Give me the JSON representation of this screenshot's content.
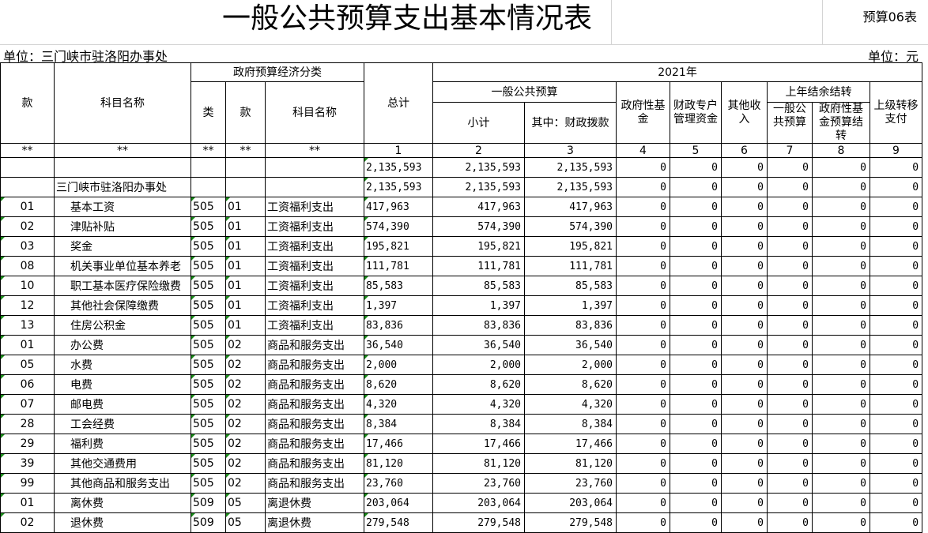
{
  "header": {
    "title": "一般公共预算支出基本情况表",
    "form_code": "预算06表",
    "unit_left": "单位：三门峡市驻洛阳办事处",
    "unit_right": "单位：元"
  },
  "columns": {
    "kuan": "款",
    "subject_name": "科目名称",
    "econ_group": "政府预算经济分类",
    "econ_lei": "类",
    "econ_kuan": "款",
    "econ_name": "科目名称",
    "total": "总计",
    "year": "2021年",
    "general_budget": "一般公共预算",
    "subtotal": "小计",
    "of_which_fiscal": "其中：财政拨款",
    "gov_fund": "政府性基金",
    "special_account": "财政专户管理资金",
    "other_income": "其他收入",
    "carryover": "上年结余结转",
    "carry_general": "一般公共预算",
    "carry_gov_fund": "政府性基金预算结转",
    "transfer": "上级转移支付",
    "idx": [
      "**",
      "**",
      "**",
      "**",
      "**",
      "1",
      "2",
      "3",
      "4",
      "5",
      "6",
      "7",
      "8",
      "9"
    ]
  },
  "rows": [
    {
      "kuan": "",
      "name": "",
      "lei": "",
      "ekuan": "",
      "ename": "",
      "total": "2,135,593",
      "sub": "2,135,593",
      "fiscal": "2,135,593",
      "c4": "0",
      "c5": "0",
      "c6": "0",
      "c7": "0",
      "c8": "0",
      "c9": "0"
    },
    {
      "kuan": "",
      "name": "三门峡市驻洛阳办事处",
      "lei": "",
      "ekuan": "",
      "ename": "",
      "total": "2,135,593",
      "sub": "2,135,593",
      "fiscal": "2,135,593",
      "c4": "0",
      "c5": "0",
      "c6": "0",
      "c7": "0",
      "c8": "0",
      "c9": "0"
    },
    {
      "kuan": "01",
      "name": "基本工资",
      "lei": "505",
      "ekuan": "01",
      "ename": "工资福利支出",
      "total": "417,963",
      "sub": "417,963",
      "fiscal": "417,963",
      "c4": "0",
      "c5": "0",
      "c6": "0",
      "c7": "0",
      "c8": "0",
      "c9": "0"
    },
    {
      "kuan": "02",
      "name": "津贴补贴",
      "lei": "505",
      "ekuan": "01",
      "ename": "工资福利支出",
      "total": "574,390",
      "sub": "574,390",
      "fiscal": "574,390",
      "c4": "0",
      "c5": "0",
      "c6": "0",
      "c7": "0",
      "c8": "0",
      "c9": "0"
    },
    {
      "kuan": "03",
      "name": "奖金",
      "lei": "505",
      "ekuan": "01",
      "ename": "工资福利支出",
      "total": "195,821",
      "sub": "195,821",
      "fiscal": "195,821",
      "c4": "0",
      "c5": "0",
      "c6": "0",
      "c7": "0",
      "c8": "0",
      "c9": "0"
    },
    {
      "kuan": "08",
      "name": "机关事业单位基本养老",
      "lei": "505",
      "ekuan": "01",
      "ename": "工资福利支出",
      "total": "111,781",
      "sub": "111,781",
      "fiscal": "111,781",
      "c4": "0",
      "c5": "0",
      "c6": "0",
      "c7": "0",
      "c8": "0",
      "c9": "0"
    },
    {
      "kuan": "10",
      "name": "职工基本医疗保险缴费",
      "lei": "505",
      "ekuan": "01",
      "ename": "工资福利支出",
      "total": "85,583",
      "sub": "85,583",
      "fiscal": "85,583",
      "c4": "0",
      "c5": "0",
      "c6": "0",
      "c7": "0",
      "c8": "0",
      "c9": "0"
    },
    {
      "kuan": "12",
      "name": "其他社会保障缴费",
      "lei": "505",
      "ekuan": "01",
      "ename": "工资福利支出",
      "total": "1,397",
      "sub": "1,397",
      "fiscal": "1,397",
      "c4": "0",
      "c5": "0",
      "c6": "0",
      "c7": "0",
      "c8": "0",
      "c9": "0"
    },
    {
      "kuan": "13",
      "name": "住房公积金",
      "lei": "505",
      "ekuan": "01",
      "ename": "工资福利支出",
      "total": "83,836",
      "sub": "83,836",
      "fiscal": "83,836",
      "c4": "0",
      "c5": "0",
      "c6": "0",
      "c7": "0",
      "c8": "0",
      "c9": "0"
    },
    {
      "kuan": "01",
      "name": "办公费",
      "lei": "505",
      "ekuan": "02",
      "ename": "商品和服务支出",
      "total": "36,540",
      "sub": "36,540",
      "fiscal": "36,540",
      "c4": "0",
      "c5": "0",
      "c6": "0",
      "c7": "0",
      "c8": "0",
      "c9": "0"
    },
    {
      "kuan": "05",
      "name": "水费",
      "lei": "505",
      "ekuan": "02",
      "ename": "商品和服务支出",
      "total": "2,000",
      "sub": "2,000",
      "fiscal": "2,000",
      "c4": "0",
      "c5": "0",
      "c6": "0",
      "c7": "0",
      "c8": "0",
      "c9": "0"
    },
    {
      "kuan": "06",
      "name": "电费",
      "lei": "505",
      "ekuan": "02",
      "ename": "商品和服务支出",
      "total": "8,620",
      "sub": "8,620",
      "fiscal": "8,620",
      "c4": "0",
      "c5": "0",
      "c6": "0",
      "c7": "0",
      "c8": "0",
      "c9": "0"
    },
    {
      "kuan": "07",
      "name": "邮电费",
      "lei": "505",
      "ekuan": "02",
      "ename": "商品和服务支出",
      "total": "4,320",
      "sub": "4,320",
      "fiscal": "4,320",
      "c4": "0",
      "c5": "0",
      "c6": "0",
      "c7": "0",
      "c8": "0",
      "c9": "0"
    },
    {
      "kuan": "28",
      "name": "工会经费",
      "lei": "505",
      "ekuan": "02",
      "ename": "商品和服务支出",
      "total": "8,384",
      "sub": "8,384",
      "fiscal": "8,384",
      "c4": "0",
      "c5": "0",
      "c6": "0",
      "c7": "0",
      "c8": "0",
      "c9": "0"
    },
    {
      "kuan": "29",
      "name": "福利费",
      "lei": "505",
      "ekuan": "02",
      "ename": "商品和服务支出",
      "total": "17,466",
      "sub": "17,466",
      "fiscal": "17,466",
      "c4": "0",
      "c5": "0",
      "c6": "0",
      "c7": "0",
      "c8": "0",
      "c9": "0"
    },
    {
      "kuan": "39",
      "name": "其他交通费用",
      "lei": "505",
      "ekuan": "02",
      "ename": "商品和服务支出",
      "total": "81,120",
      "sub": "81,120",
      "fiscal": "81,120",
      "c4": "0",
      "c5": "0",
      "c6": "0",
      "c7": "0",
      "c8": "0",
      "c9": "0"
    },
    {
      "kuan": "99",
      "name": "其他商品和服务支出",
      "lei": "505",
      "ekuan": "02",
      "ename": "商品和服务支出",
      "total": "23,760",
      "sub": "23,760",
      "fiscal": "23,760",
      "c4": "0",
      "c5": "0",
      "c6": "0",
      "c7": "0",
      "c8": "0",
      "c9": "0"
    },
    {
      "kuan": "01",
      "name": "离休费",
      "lei": "509",
      "ekuan": "05",
      "ename": "离退休费",
      "total": "203,064",
      "sub": "203,064",
      "fiscal": "203,064",
      "c4": "0",
      "c5": "0",
      "c6": "0",
      "c7": "0",
      "c8": "0",
      "c9": "0"
    },
    {
      "kuan": "02",
      "name": "退休费",
      "lei": "509",
      "ekuan": "05",
      "ename": "离退休费",
      "total": "279,548",
      "sub": "279,548",
      "fiscal": "279,548",
      "c4": "0",
      "c5": "0",
      "c6": "0",
      "c7": "0",
      "c8": "0",
      "c9": "0"
    }
  ]
}
